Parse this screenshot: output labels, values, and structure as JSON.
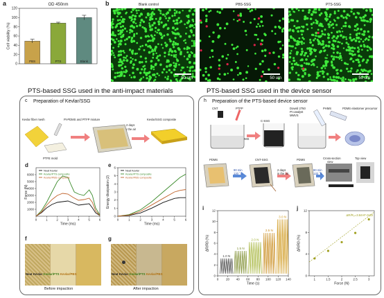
{
  "panel_a": {
    "letter": "a",
    "chart_data": {
      "type": "bar",
      "title": "OD 450nm",
      "ylabel": "Cell viability (%)",
      "categories": [
        "PBS",
        "PTS",
        "Blank"
      ],
      "values": [
        49,
        88,
        100
      ],
      "errors": [
        4,
        2,
        5
      ],
      "ylim": [
        0,
        120
      ],
      "yticks": [
        0,
        20,
        40,
        60,
        80,
        100,
        120
      ],
      "colors": [
        "#c8a24a",
        "#8aa83a",
        "#5f8a80"
      ]
    }
  },
  "panel_b": {
    "letter": "b",
    "images": [
      {
        "label": "Blank control",
        "scale": "50 um"
      },
      {
        "label": "PBS-SSG",
        "scale": "50 um"
      },
      {
        "label": "PTS-SSG",
        "scale": "50 um"
      }
    ]
  },
  "left_section": {
    "title": "PTS-based SSG used in the anti-impact materials",
    "sub_c": {
      "letter": "c",
      "title": "Preparation of Kevlar/SSG"
    },
    "c_labels": {
      "kevlar_mesh": "Kevlar fiber mesh",
      "ptfe_mold": "PTFE mold",
      "mixture": "Pt-PDMS and PTFP mixture",
      "days": "2 days",
      "in_air": "in the air",
      "composite": "Kevlar/SSG composite"
    },
    "panel_d": {
      "letter": "d",
      "chart_data": {
        "type": "line",
        "xlabel": "Time (ms)",
        "ylabel": "Force (N)",
        "xlim": [
          0,
          6
        ],
        "ylim": [
          0,
          7000
        ],
        "xticks": [
          0,
          1,
          2,
          3,
          4,
          5,
          6
        ],
        "yticks": [
          1000,
          2000,
          3000,
          4000,
          5000,
          6000
        ],
        "series": [
          {
            "name": "Neat Kevlar",
            "color": "#111111",
            "x": [
              0,
              0.5,
              1,
              1.5,
              2,
              2.5,
              3,
              3.5,
              4,
              4.5,
              5,
              5.3,
              5.6,
              6
            ],
            "y": [
              0,
              500,
              1200,
              1700,
              2000,
              2100,
              2200,
              1900,
              1600,
              1700,
              1800,
              1200,
              500,
              100
            ]
          },
          {
            "name": "Kevlar/PTS composite",
            "color": "#3a8a2a",
            "x": [
              0,
              0.5,
              1,
              1.5,
              2,
              2.5,
              3,
              3.3,
              3.6,
              4,
              4.5,
              5,
              5.3,
              5.6,
              6
            ],
            "y": [
              0,
              800,
              2000,
              3500,
              5000,
              5800,
              5600,
              4500,
              3500,
              3200,
              3000,
              3800,
              3000,
              1200,
              200
            ]
          },
          {
            "name": "Kevlar/PBS composite",
            "color": "#c0622a",
            "x": [
              0,
              0.5,
              1,
              1.5,
              2,
              2.5,
              3,
              3.5,
              4,
              4.5,
              5,
              5.3,
              5.6,
              6
            ],
            "y": [
              0,
              600,
              1600,
              2400,
              3000,
              3300,
              3200,
              2700,
              2300,
              2400,
              2600,
              2000,
              800,
              100
            ]
          }
        ]
      }
    },
    "panel_e": {
      "letter": "e",
      "chart_data": {
        "type": "line",
        "xlabel": "Time (ms)",
        "ylabel": "Energy dissipation (J)",
        "xlim": [
          0,
          6
        ],
        "ylim": [
          0,
          6
        ],
        "xticks": [
          0,
          1,
          2,
          3,
          4,
          5,
          6
        ],
        "yticks": [
          0,
          1,
          2,
          3,
          4,
          5,
          6
        ],
        "series": [
          {
            "name": "Neat Kevlar",
            "color": "#111111",
            "x": [
              0,
              1,
              2,
              3,
              4,
              5,
              5.5,
              6
            ],
            "y": [
              0,
              0.1,
              0.4,
              1.0,
              1.7,
              2.2,
              2.3,
              2.3
            ]
          },
          {
            "name": "Kevlar/PTS composite",
            "color": "#3a8a2a",
            "x": [
              0,
              1,
              2,
              3,
              4,
              5,
              5.5,
              6
            ],
            "y": [
              0,
              0.2,
              0.8,
              1.8,
              3.0,
              4.2,
              4.8,
              5.2
            ]
          },
          {
            "name": "Kevlar/PBS composite",
            "color": "#c0622a",
            "x": [
              0,
              1,
              2,
              3,
              4,
              5,
              5.5,
              6
            ],
            "y": [
              0,
              0.15,
              0.6,
              1.4,
              2.2,
              3.0,
              3.2,
              3.3
            ]
          }
        ]
      }
    },
    "panel_f": {
      "letter": "f",
      "labels": [
        "Neat Kevlar",
        "Kevlar/PTS",
        "Kevlar/PBS"
      ],
      "caption": "Before impaction"
    },
    "panel_g": {
      "letter": "g",
      "labels": [
        "Neat Kevlar",
        "Kevlar/PTS",
        "Kevlar/PBS"
      ],
      "caption": "After impaction"
    }
  },
  "right_section": {
    "title": "PTS-based SSG used in the device sensor",
    "sub_h": {
      "letter": "h",
      "title": "Preparation of the PTS-based device sensor"
    },
    "h_labels": {
      "cnt": "CNT",
      "ptfp": "PTFP",
      "ptpdms": "Pt-PDMS",
      "cssg": "C-SSG",
      "mixed": "Mixed",
      "dowsil": "Dowsil 2750",
      "pt_catalyst": "Pt catalyst",
      "mmvs": "MMVS",
      "phms": "PHMS",
      "vpmvs": "V-PMVS",
      "precursor": "PDMS elastomer precursor",
      "pdms1": "PDMS",
      "time1": "90 min",
      "temp1": "120 °C",
      "cntssg": "CNT-SSG",
      "days": "2 days",
      "in_air": "in the air",
      "pdms2": "PDMS",
      "time2": "90 min",
      "temp2": "120 °C",
      "cross": "Cross-section",
      "view": "view",
      "top": "Top view"
    },
    "panel_i": {
      "letter": "i",
      "chart_data": {
        "type": "line",
        "xlabel": "Time (s)",
        "ylabel": "ΔR/R0 (%)",
        "xlim": [
          0,
          140
        ],
        "ylim": [
          0,
          12
        ],
        "xticks": [
          0,
          20,
          40,
          60,
          80,
          100,
          120,
          140
        ],
        "yticks": [
          0,
          2,
          4,
          6,
          8,
          10,
          12
        ],
        "segments": [
          {
            "label": "1.0 N",
            "start": 5,
            "end": 30,
            "peak": 3.2,
            "color": "#3b3b3b"
          },
          {
            "label": "1.5 N",
            "start": 33,
            "end": 58,
            "peak": 4.6,
            "color": "#7a8a2a"
          },
          {
            "label": "2.0 N",
            "start": 61,
            "end": 87,
            "peak": 6.2,
            "color": "#a0b030"
          },
          {
            "label": "2.5 N",
            "start": 90,
            "end": 114,
            "peak": 7.9,
            "color": "#c88a1a"
          },
          {
            "label": "3.0 N",
            "start": 117,
            "end": 140,
            "peak": 10.4,
            "color": "#d09a20"
          }
        ]
      }
    },
    "panel_j": {
      "letter": "j",
      "chart_data": {
        "type": "scatter",
        "xlabel": "Force (N)",
        "ylabel": "ΔR/R0 (%)",
        "xlim": [
          0.8,
          3.2
        ],
        "ylim": [
          0,
          12
        ],
        "xticks": [
          1.0,
          1.5,
          2.0,
          2.5,
          3.0
        ],
        "yticks": [
          0,
          4,
          8,
          12
        ],
        "x": [
          1.0,
          1.5,
          2.0,
          2.5,
          3.0
        ],
        "y": [
          3.2,
          4.6,
          6.2,
          7.9,
          10.4
        ],
        "fit_label": "ΔR/R₀=3.84×F-0.53",
        "color": "#a0a020"
      }
    }
  }
}
